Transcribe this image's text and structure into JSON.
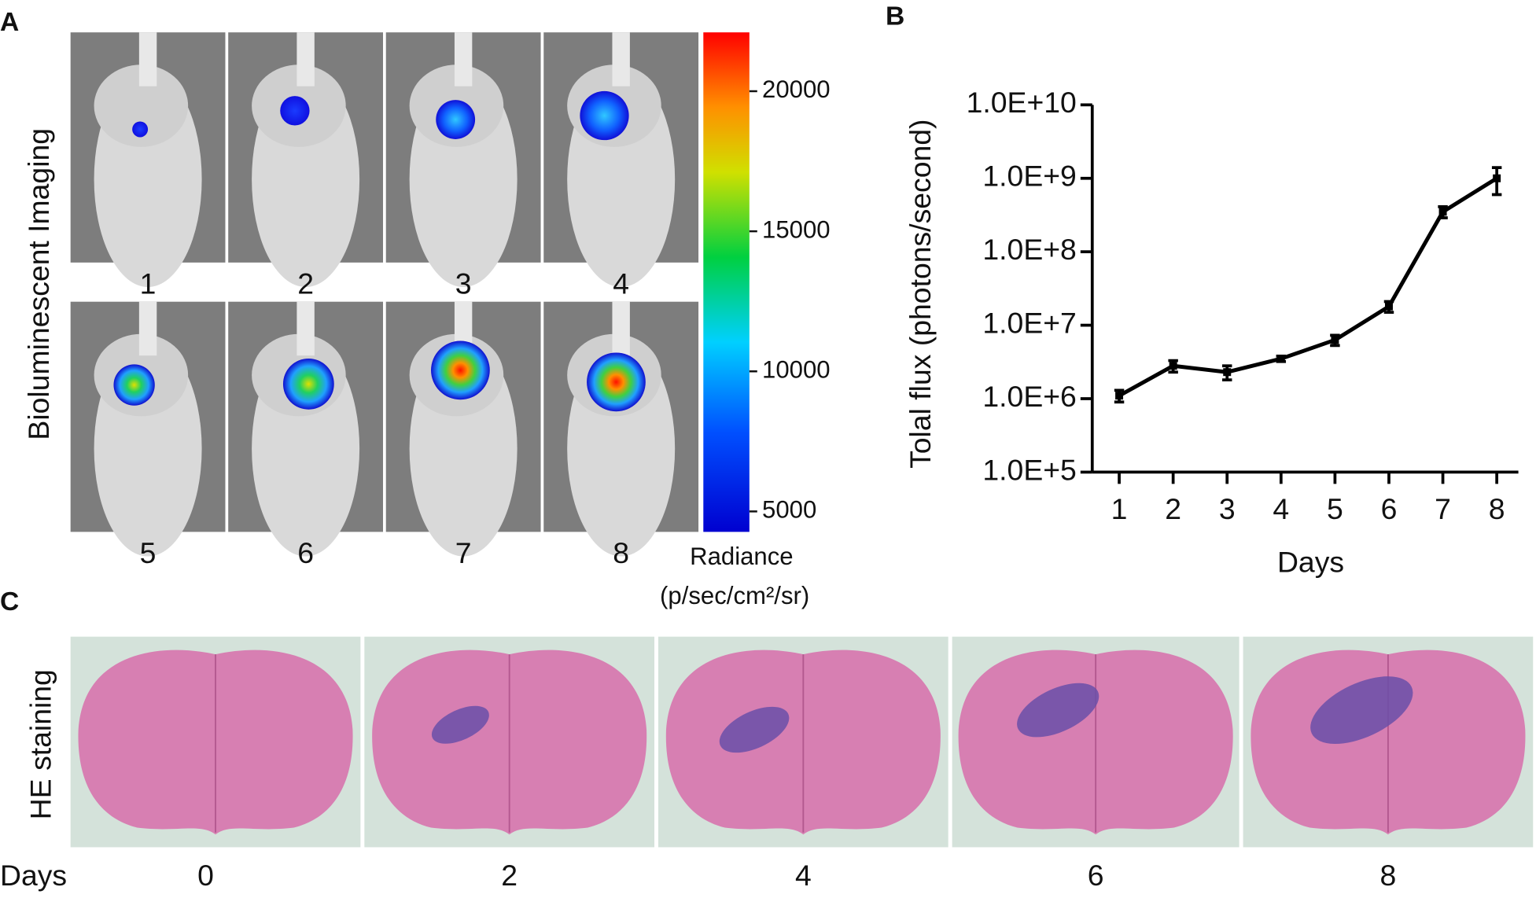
{
  "panel_labels": [
    "A",
    "B",
    "C"
  ],
  "panel_a": {
    "title": "Bioluminescent Imaging",
    "image_labels": [
      "1",
      "2",
      "3",
      "4",
      "5",
      "6",
      "7",
      "8"
    ],
    "colorbar": {
      "label": "Radiance",
      "unit": "(p/sec/cm²/sr)",
      "range": [
        4270,
        22100
      ],
      "ticks": [
        5000,
        10000,
        15000,
        20000
      ]
    }
  },
  "chart_data": {
    "type": "line",
    "y_label": "Tolal flux (photons/second)",
    "x_label": "Days",
    "x": [
      1,
      2,
      3,
      4,
      5,
      6,
      7,
      8
    ],
    "values": [
      1100000,
      2800000,
      2300000,
      3500000,
      6300000,
      18000000,
      350000000,
      1000000000
    ],
    "errors": [
      200000,
      500000,
      500000,
      300000,
      1000000,
      3000000,
      60000000,
      400000000
    ],
    "color": "#000000",
    "log_y": true,
    "xlim": [
      0.5,
      8.4
    ],
    "xticks": [
      1,
      2,
      3,
      4,
      5,
      6,
      7,
      8
    ],
    "ylim": [
      100000,
      10000000000
    ],
    "yticks": [
      {
        "value": 100000,
        "label": "1.0E+5"
      },
      {
        "value": 1000000,
        "label": "1.0E+6"
      },
      {
        "value": 10000000,
        "label": "1.0E+7"
      },
      {
        "value": 100000000,
        "label": "1.0E+8"
      },
      {
        "value": 1000000000,
        "label": "1.0E+9"
      },
      {
        "value": 10000000000,
        "label": "1.0E+10"
      }
    ],
    "grid": false
  },
  "panel_c": {
    "title": "HE staining",
    "axis_label": "Days",
    "image_labels": [
      "0",
      "2",
      "4",
      "6",
      "8"
    ]
  }
}
